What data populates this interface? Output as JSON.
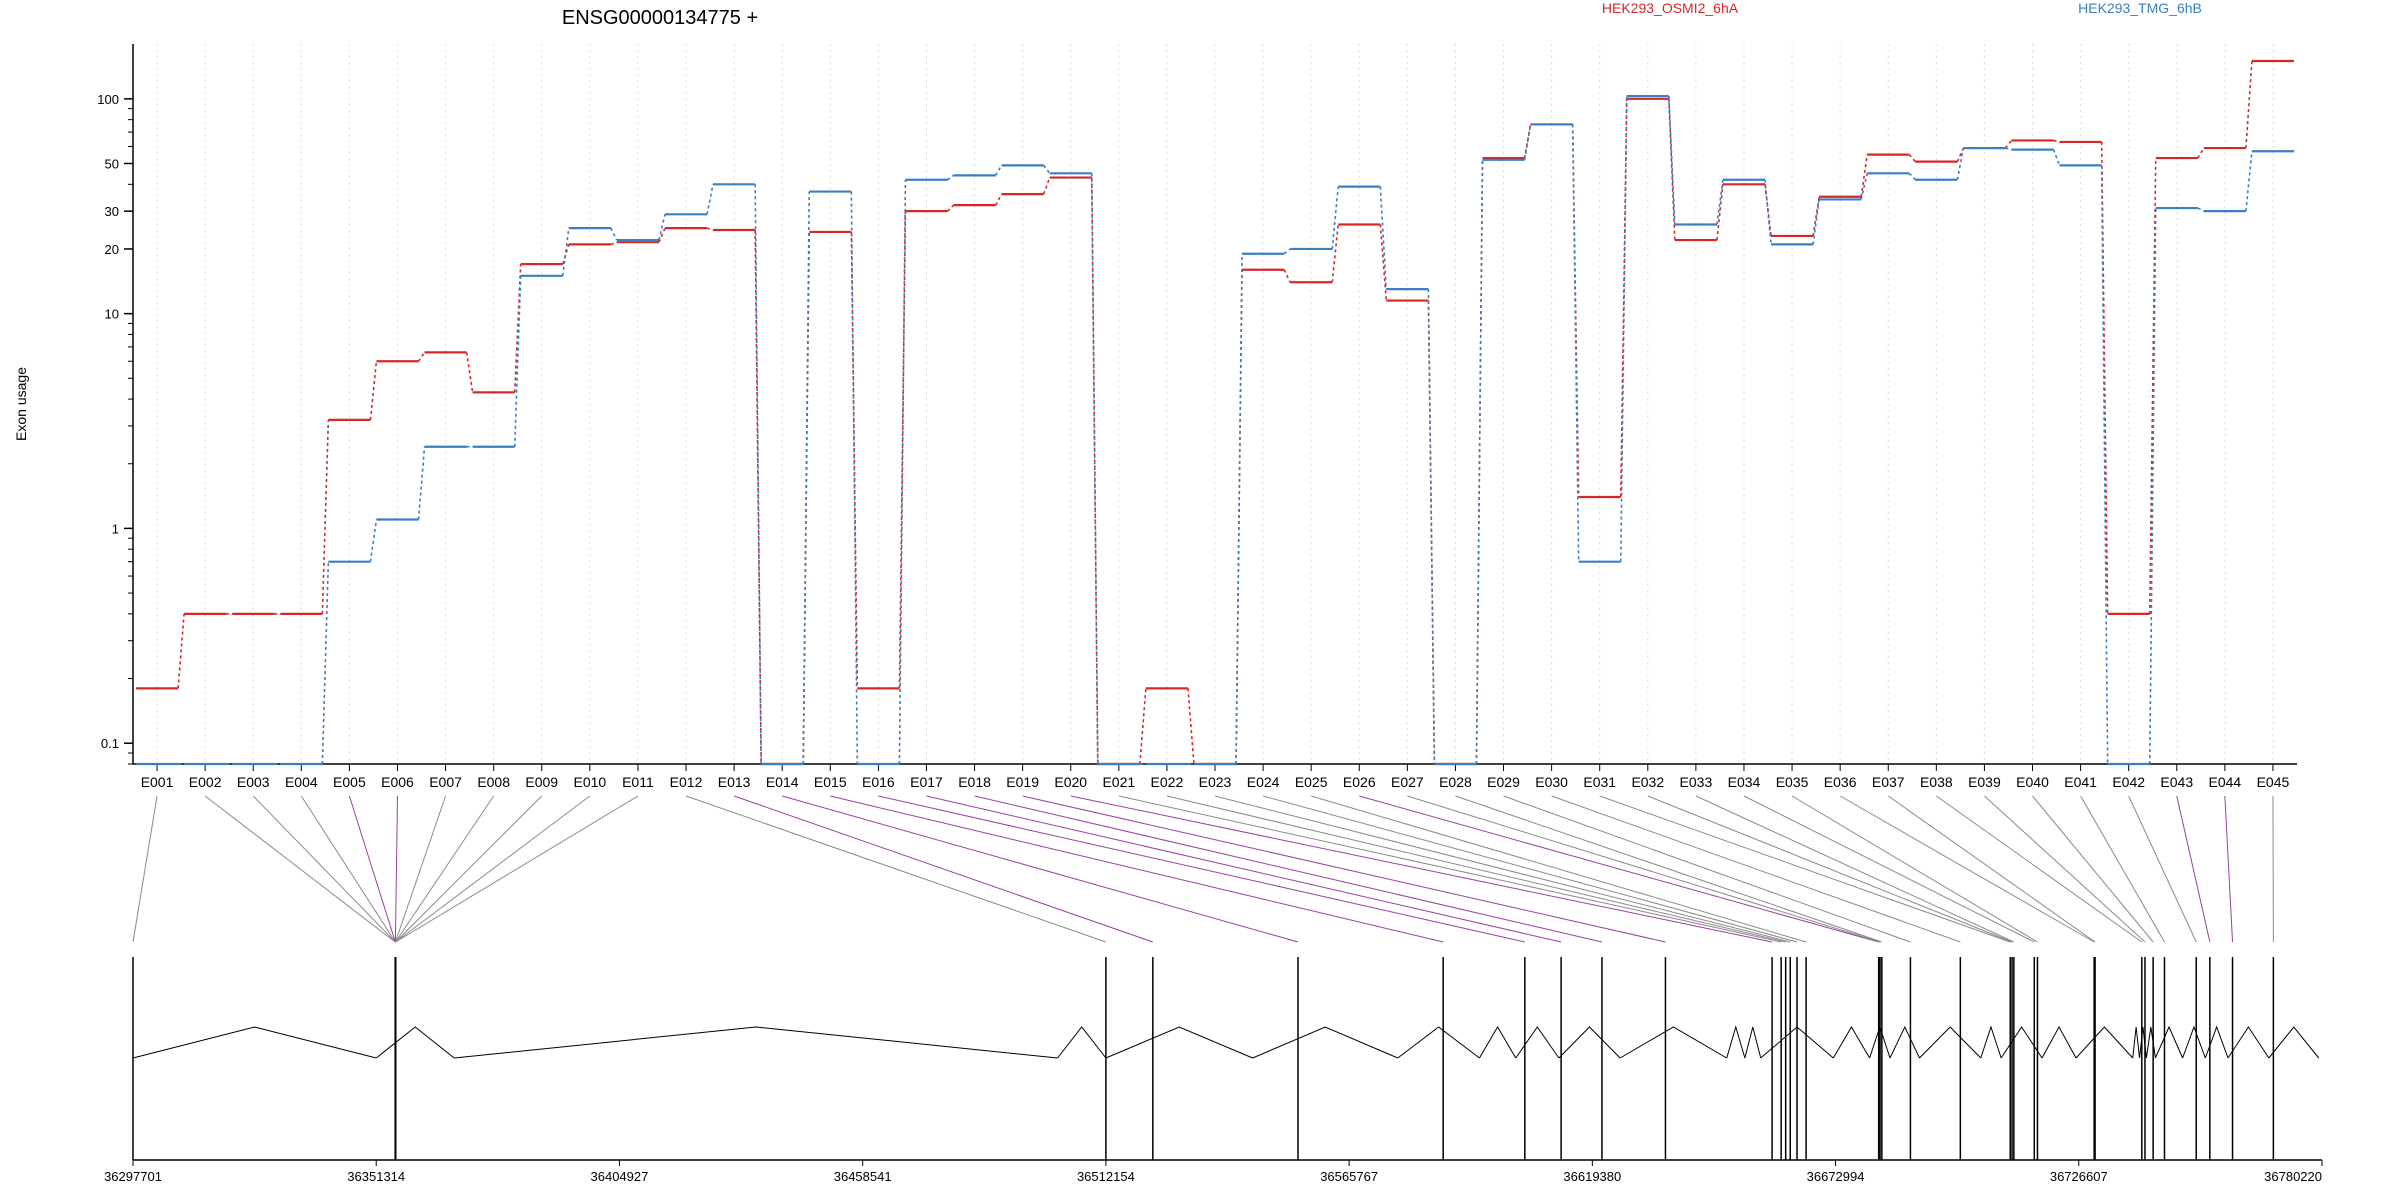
{
  "chart_data": {
    "type": "line",
    "title": "ENSG00000134775 +",
    "ylabel": "Exon usage",
    "yscale": "log",
    "ylim": [
      0.08,
      180
    ],
    "yticks": [
      0.1,
      1,
      10,
      20,
      30,
      50,
      100
    ],
    "ytick_labels": [
      "0.1",
      "1",
      "10",
      "20",
      "30",
      "50",
      "100"
    ],
    "categories": [
      "E001",
      "E002",
      "E003",
      "E004",
      "E005",
      "E006",
      "E007",
      "E008",
      "E009",
      "E010",
      "E011",
      "E012",
      "E013",
      "E014",
      "E015",
      "E016",
      "E017",
      "E018",
      "E019",
      "E020",
      "E021",
      "E022",
      "E023",
      "E024",
      "E025",
      "E026",
      "E027",
      "E028",
      "E029",
      "E030",
      "E031",
      "E032",
      "E033",
      "E034",
      "E035",
      "E036",
      "E037",
      "E038",
      "E039",
      "E040",
      "E041",
      "E042",
      "E043",
      "E044",
      "E045"
    ],
    "series": [
      {
        "name": "HEK293_OSMI2_6hA",
        "color": "#d62728",
        "values": [
          0.18,
          0.4,
          0.4,
          0.4,
          3.2,
          6,
          6.6,
          4.3,
          17,
          21,
          21.5,
          25,
          24.5,
          0.08,
          24,
          0.18,
          30,
          32,
          36,
          43,
          0.08,
          0.18,
          0.08,
          16,
          14,
          26,
          11.5,
          0.08,
          53,
          76,
          1.4,
          100,
          22,
          40,
          23,
          35,
          55,
          51,
          59,
          64,
          63,
          0.4,
          53,
          59,
          150
        ]
      },
      {
        "name": "HEK293_TMG_6hB",
        "color": "#3a7fc1",
        "values": [
          0.08,
          0.08,
          0.08,
          0.08,
          0.7,
          1.1,
          2.4,
          2.4,
          15,
          25,
          22,
          29,
          40,
          0.08,
          37,
          0.08,
          42,
          44,
          49,
          45,
          0.08,
          0.08,
          0.08,
          19,
          20,
          39,
          13,
          0.08,
          52,
          76,
          0.7,
          103,
          26,
          42,
          21,
          34,
          45,
          42,
          59,
          58,
          49,
          0.08,
          31,
          30,
          57
        ]
      }
    ],
    "genomic_axis": {
      "tick_labels": [
        "36297701",
        "36351314",
        "36404927",
        "36458541",
        "36512154",
        "36565767",
        "36619380",
        "36672994",
        "36726607",
        "36780220"
      ],
      "range": [
        36297701,
        36780220
      ],
      "exon_starts": [
        36297701,
        36355500,
        36355510,
        36355520,
        36355530,
        36355540,
        36355550,
        36355560,
        36355570,
        36355580,
        36355590,
        36512154,
        36522500,
        36554500,
        36586500,
        36604500,
        36612500,
        36621500,
        36635500,
        36659000,
        36661000,
        36662000,
        36663000,
        36664500,
        36666500,
        36682500,
        36682800,
        36683200,
        36689500,
        36700500,
        36711500,
        36711900,
        36712300,
        36716800,
        36717500,
        36730000,
        36730200,
        36740500,
        36741200,
        36743000,
        36745500,
        36752500,
        36755500,
        36760500,
        36769500
      ],
      "purple_links": [
        "E005",
        "E006",
        "E013",
        "E014",
        "E015",
        "E016",
        "E017",
        "E018",
        "E019",
        "E020",
        "E026",
        "E043",
        "E044"
      ],
      "introns": [
        {
          "from": 36297701,
          "to": 36351314
        },
        {
          "from": 36351314,
          "to": 36368500
        },
        {
          "from": 36368500,
          "to": 36501500
        },
        {
          "from": 36501500,
          "to": 36512154
        },
        {
          "from": 36512154,
          "to": 36544500
        },
        {
          "from": 36544500,
          "to": 36576500
        },
        {
          "from": 36576500,
          "to": 36594500
        },
        {
          "from": 36594500,
          "to": 36602500
        },
        {
          "from": 36602500,
          "to": 36612000
        },
        {
          "from": 36612000,
          "to": 36625500
        },
        {
          "from": 36625500,
          "to": 36649000
        },
        {
          "from": 36649000,
          "to": 36653000
        },
        {
          "from": 36653000,
          "to": 36656500
        },
        {
          "from": 36656500,
          "to": 36672500
        },
        {
          "from": 36672500,
          "to": 36680500
        },
        {
          "from": 36680500,
          "to": 36685000
        },
        {
          "from": 36685000,
          "to": 36691500
        },
        {
          "from": 36691500,
          "to": 36705000
        },
        {
          "from": 36705000,
          "to": 36709500
        },
        {
          "from": 36709500,
          "to": 36718500
        },
        {
          "from": 36718500,
          "to": 36726000
        },
        {
          "from": 36726000,
          "to": 36738500
        },
        {
          "from": 36738500,
          "to": 36740000
        },
        {
          "from": 36740000,
          "to": 36741500
        },
        {
          "from": 36741500,
          "to": 36743500
        },
        {
          "from": 36743500,
          "to": 36749500
        },
        {
          "from": 36749500,
          "to": 36754500
        },
        {
          "from": 36754500,
          "to": 36759500
        },
        {
          "from": 36759500,
          "to": 36768500
        },
        {
          "from": 36768500,
          "to": 36779500
        }
      ]
    },
    "legend_placement": "top, horizontal",
    "grid": "vertical dotted lines at exon centers"
  }
}
